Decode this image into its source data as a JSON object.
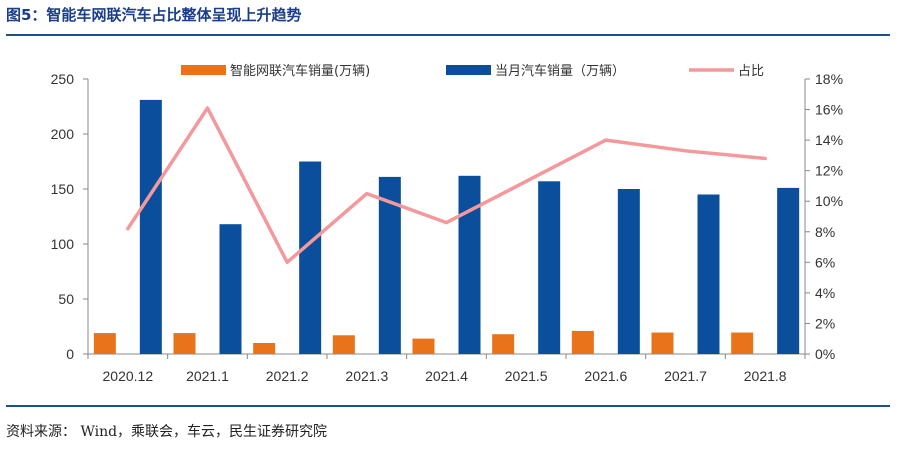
{
  "header": {
    "figure_title": "图5：智能车网联汽车占比整体呈现上升趋势"
  },
  "footer": {
    "source": "资料来源： Wind，乘联会，车云，民生证券研究院"
  },
  "colors": {
    "rule": "#1f4e8c",
    "title": "#1a3e8a",
    "bar_small": "#e8731b",
    "bar_large": "#0b4f9c",
    "line": "#f4989c"
  },
  "chart_data": {
    "type": "bar",
    "categories": [
      "2020.12",
      "2021.1",
      "2021.2",
      "2021.3",
      "2021.4",
      "2021.5",
      "2021.6",
      "2021.7",
      "2021.8"
    ],
    "series": [
      {
        "name": "智能网联汽车销量(万辆)",
        "type": "bar",
        "axis": "left",
        "values": [
          19,
          19,
          10,
          17,
          14,
          18,
          21,
          19.5,
          19.5
        ]
      },
      {
        "name": "当月汽车销量（万辆）",
        "type": "bar",
        "axis": "left",
        "values": [
          231,
          118,
          175,
          161,
          162,
          157,
          150,
          145,
          151
        ]
      },
      {
        "name": "占比",
        "type": "line",
        "axis": "right",
        "unit": "%",
        "values": [
          8.2,
          16.1,
          6.0,
          10.5,
          8.6,
          11.3,
          14.0,
          13.3,
          12.8
        ]
      }
    ],
    "y_left": {
      "lim": [
        0,
        250
      ],
      "ticks": [
        "0",
        "50",
        "100",
        "150",
        "200",
        "250"
      ]
    },
    "y_right": {
      "lim": [
        0,
        18
      ],
      "ticks": [
        "0%",
        "2%",
        "4%",
        "6%",
        "8%",
        "10%",
        "12%",
        "14%",
        "16%",
        "18%"
      ]
    },
    "legend_position": "top",
    "grid": false
  }
}
